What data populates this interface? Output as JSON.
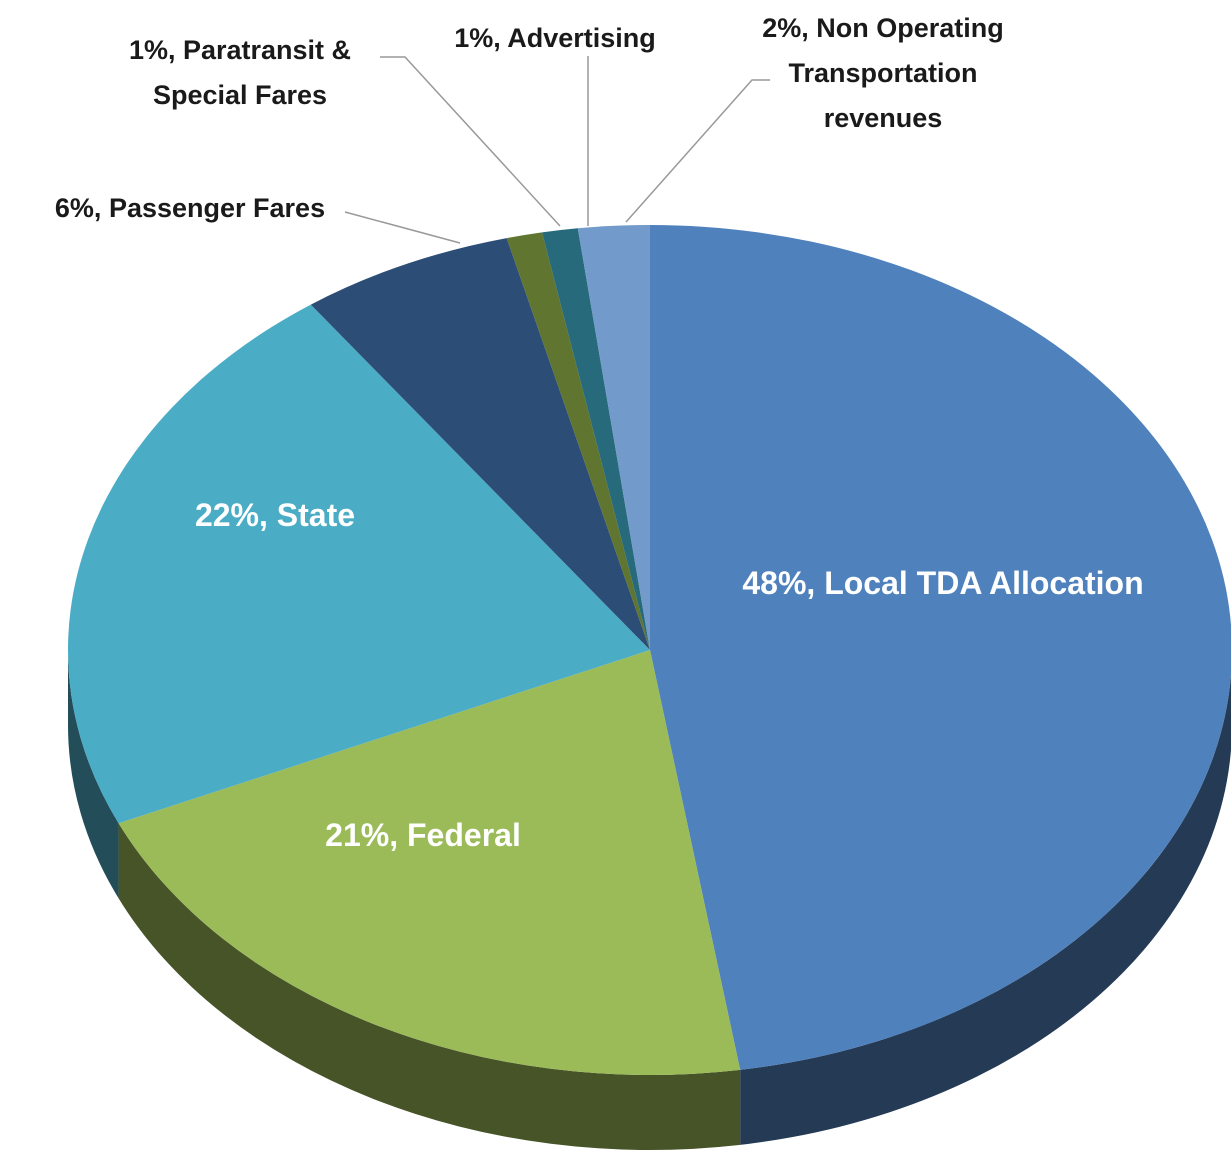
{
  "chart_data": {
    "type": "pie3d",
    "categories": [
      "Local TDA Allocation",
      "Federal",
      "State",
      "Passenger Fares",
      "Paratransit & Special Fares",
      "Advertising",
      "Non Operating Transportation revenues"
    ],
    "values": [
      48,
      21,
      22,
      6,
      1,
      1,
      2
    ],
    "value_labels": [
      "48%,",
      "21%,",
      "22%,",
      "6%,",
      "1%,",
      "1%,",
      "2%,"
    ],
    "colors": [
      "#4f81bd",
      "#9bbb59",
      "#4bacc6",
      "#2c4d75",
      "#5f7530",
      "#276a7c",
      "#729aca"
    ]
  }
}
